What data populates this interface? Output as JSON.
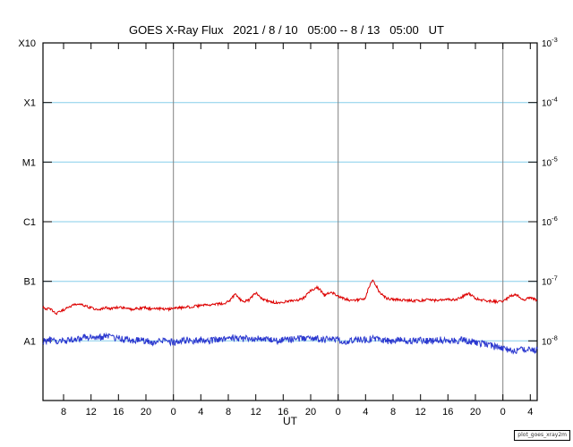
{
  "title": "GOES X-Ray Flux   2021 / 8 / 10   05:00 -- 8 / 13   05:00   UT",
  "x_axis_label": "UT",
  "watermark": "plot_goes_xray2m",
  "colors": {
    "long_series": "#dd0000",
    "short_series": "#2b38cf",
    "gridline": "#85cdea",
    "day_line": "#808080",
    "axis": "#000000"
  },
  "y_axis": {
    "left_labels": [
      {
        "label": "X10",
        "value": 0.001
      },
      {
        "label": "X1",
        "value": 0.0001
      },
      {
        "label": "M1",
        "value": 1e-05
      },
      {
        "label": "C1",
        "value": 1e-06
      },
      {
        "label": "B1",
        "value": 1e-07
      },
      {
        "label": "A1",
        "value": 1e-08
      }
    ],
    "right_labels": [
      {
        "base": "10",
        "exp": "-3",
        "value": 0.001
      },
      {
        "base": "10",
        "exp": "-4",
        "value": 0.0001
      },
      {
        "base": "10",
        "exp": "-5",
        "value": 1e-05
      },
      {
        "base": "10",
        "exp": "-6",
        "value": 1e-06
      },
      {
        "base": "10",
        "exp": "-7",
        "value": 1e-07
      },
      {
        "base": "10",
        "exp": "-8",
        "value": 1e-08
      }
    ]
  },
  "x_axis": {
    "span_hours": 72,
    "tick_hours": [
      3,
      7,
      11,
      15,
      19,
      23,
      27,
      31,
      35,
      39,
      43,
      47,
      51,
      55,
      59,
      63,
      67,
      71
    ],
    "tick_labels": [
      "8",
      "12",
      "16",
      "20",
      "0",
      "4",
      "8",
      "12",
      "16",
      "20",
      "0",
      "4",
      "8",
      "12",
      "16",
      "20",
      "0",
      "4"
    ],
    "day_boundary_hours": [
      19,
      43,
      67
    ]
  },
  "chart_data": {
    "type": "line",
    "title": "GOES X-Ray Flux  2021 / 8 / 10  05:00 -- 8 / 13  05:00  UT",
    "xlabel": "UT",
    "x_start": "2021-08-10 05:00 UT",
    "x_end": "2021-08-13 05:00 UT",
    "y_scale": "log",
    "ylim": [
      1e-09,
      0.001
    ],
    "y_gridlines": [
      0.0001,
      1e-05,
      1e-06,
      1e-07,
      1e-08
    ],
    "sample_interval_hours": 1,
    "series": [
      {
        "name": "xray-long-wavelength",
        "color": "#dd0000",
        "scale": 1e-08,
        "unit": "W/m^2",
        "values": [
          3.6,
          3.4,
          2.9,
          3.3,
          3.8,
          4.2,
          3.9,
          3.6,
          3.4,
          3.6,
          3.5,
          3.7,
          3.5,
          3.4,
          3.5,
          3.6,
          3.4,
          3.5,
          3.4,
          3.5,
          3.6,
          3.7,
          3.8,
          3.9,
          4.0,
          4.1,
          4.2,
          4.5,
          6.0,
          4.6,
          4.8,
          6.4,
          5.0,
          4.6,
          4.4,
          4.5,
          4.7,
          4.8,
          5.2,
          7.0,
          7.9,
          5.8,
          6.6,
          5.6,
          5.0,
          4.8,
          4.9,
          5.2,
          10.7,
          6.5,
          5.2,
          5.0,
          4.9,
          4.8,
          4.7,
          4.8,
          4.9,
          4.8,
          4.9,
          5.0,
          4.9,
          5.4,
          6.3,
          5.2,
          4.8,
          4.7,
          4.6,
          4.5,
          5.6,
          6.0,
          4.9,
          5.4,
          4.7
        ]
      },
      {
        "name": "xray-short-wavelength",
        "color": "#2b38cf",
        "scale": 1e-09,
        "unit": "W/m^2",
        "values": [
          10,
          10.5,
          9.5,
          10,
          10.5,
          11,
          11.5,
          12,
          11.5,
          12,
          11.5,
          11,
          10.5,
          10,
          10.5,
          10,
          9.5,
          10,
          10,
          9.5,
          10,
          10.5,
          10,
          10.5,
          10,
          10.5,
          11,
          11,
          11.5,
          11,
          11.5,
          11,
          10.5,
          10.5,
          10,
          10.5,
          10.5,
          11,
          11,
          11.5,
          11,
          10.5,
          11,
          10.5,
          10,
          10,
          10.5,
          10.5,
          11,
          10.5,
          10,
          10,
          10.5,
          10,
          10,
          10.5,
          10,
          10,
          10.5,
          10,
          10,
          10.5,
          10,
          9.5,
          9,
          8.5,
          8,
          7.5,
          7,
          7,
          7.5,
          7,
          7.2
        ]
      }
    ]
  }
}
